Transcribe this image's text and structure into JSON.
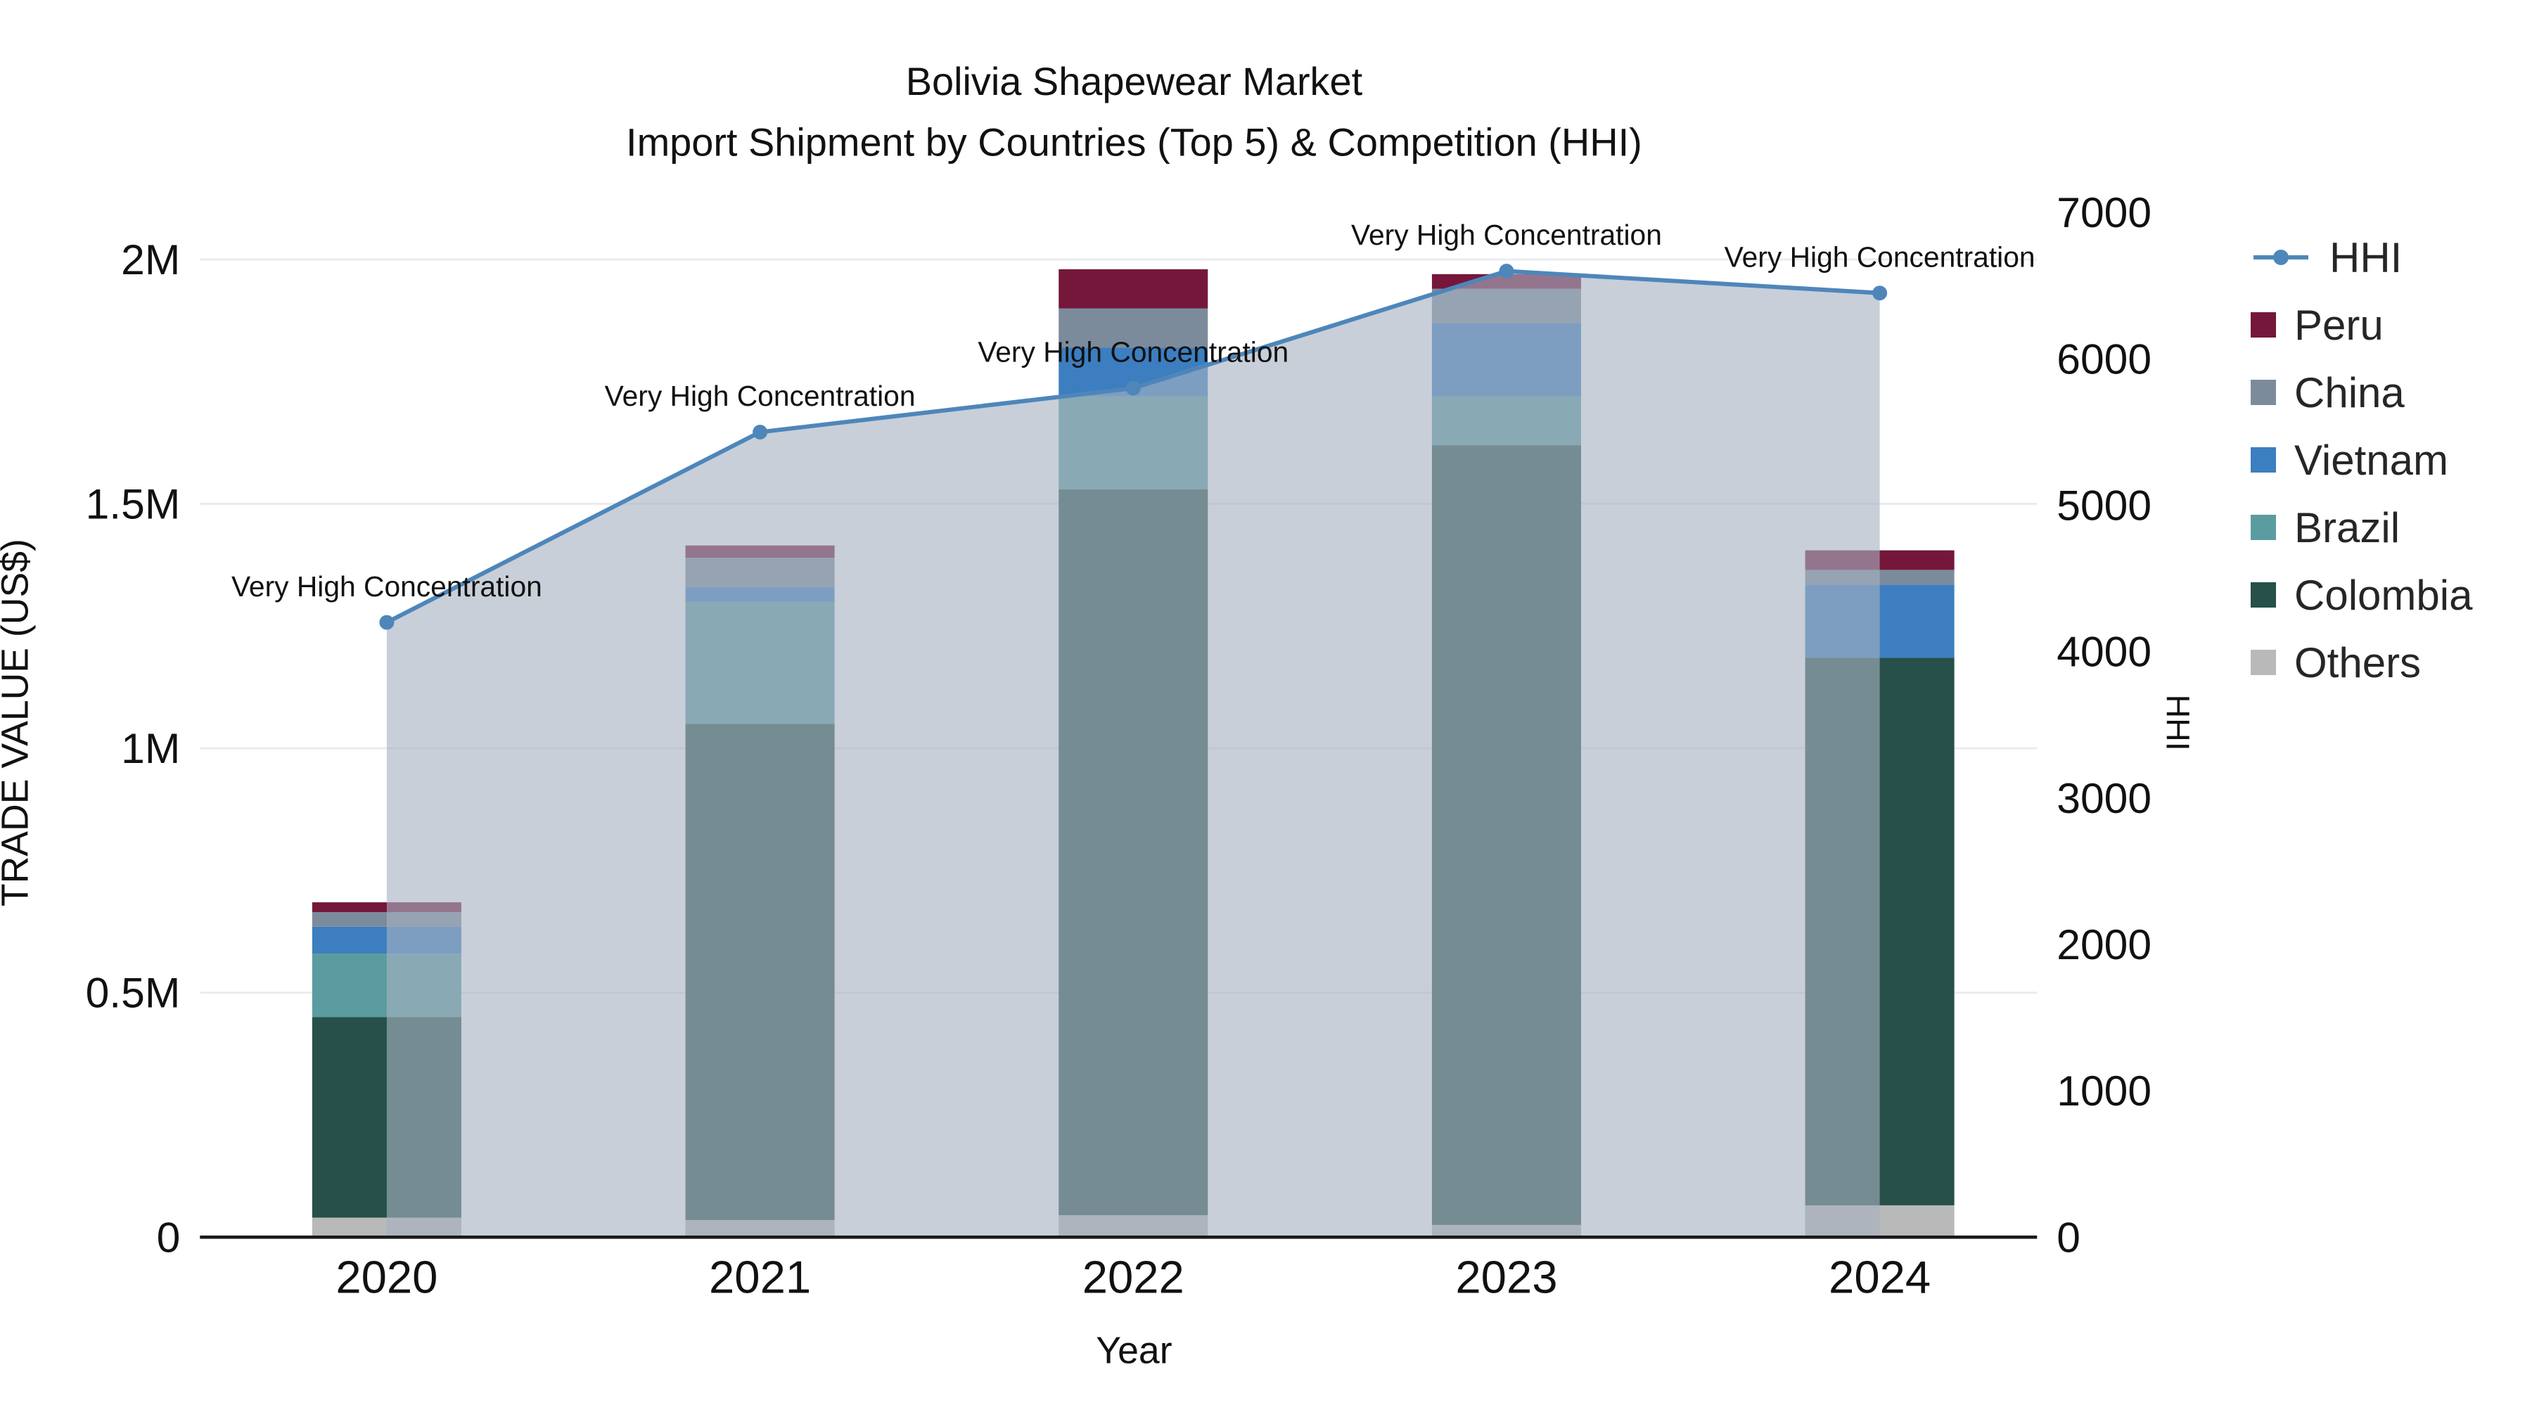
{
  "title": {
    "line1": "Bolivia Shapewear Market",
    "line2": "Import Shipment by Countries (Top 5) & Competition (HHI)"
  },
  "axes": {
    "x_title": "Year",
    "y_left_title": "TRADE VALUE (US$)",
    "y_right_title": "HHI",
    "y_left_ticks": [
      {
        "value": 0,
        "label": "0"
      },
      {
        "value": 500000,
        "label": "0.5M"
      },
      {
        "value": 1000000,
        "label": "1M"
      },
      {
        "value": 1500000,
        "label": "1.5M"
      },
      {
        "value": 2000000,
        "label": "2M"
      }
    ],
    "y_right_ticks": [
      {
        "value": 0,
        "label": "0"
      },
      {
        "value": 1000,
        "label": "1000"
      },
      {
        "value": 2000,
        "label": "2000"
      },
      {
        "value": 3000,
        "label": "3000"
      },
      {
        "value": 4000,
        "label": "4000"
      },
      {
        "value": 5000,
        "label": "5000"
      },
      {
        "value": 6000,
        "label": "6000"
      },
      {
        "value": 7000,
        "label": "7000"
      }
    ],
    "y_left_max": 2105000,
    "y_right_max": 7030
  },
  "legend": [
    {
      "label": "HHI",
      "type": "line",
      "color": "#4e86ba"
    },
    {
      "label": "Peru",
      "type": "square",
      "color": "#75173a"
    },
    {
      "label": "China",
      "type": "square",
      "color": "#7c8b9c"
    },
    {
      "label": "Vietnam",
      "type": "square",
      "color": "#3c7ec0"
    },
    {
      "label": "Brazil",
      "type": "square",
      "color": "#5b9ca0"
    },
    {
      "label": "Colombia",
      "type": "square",
      "color": "#265049"
    },
    {
      "label": "Others",
      "type": "square",
      "color": "#b9b9b9"
    }
  ],
  "chart_data": {
    "type": "bar",
    "subtype": "stacked-bars-with-line-area-overlay",
    "categories": [
      "2020",
      "2021",
      "2022",
      "2023",
      "2024"
    ],
    "bar_value_unit": "US$ trade value",
    "series": [
      {
        "name": "Others",
        "color": "#b9b9b9",
        "values": [
          40000,
          35000,
          45000,
          25000,
          65000
        ]
      },
      {
        "name": "Colombia",
        "color": "#265049",
        "values": [
          410000,
          1015000,
          1485000,
          1595000,
          1120000
        ]
      },
      {
        "name": "Brazil",
        "color": "#5b9ca0",
        "values": [
          130000,
          250000,
          190000,
          100000,
          0
        ]
      },
      {
        "name": "Vietnam",
        "color": "#3c7ec0",
        "values": [
          55000,
          30000,
          100000,
          150000,
          150000
        ]
      },
      {
        "name": "China",
        "color": "#7c8b9c",
        "values": [
          30000,
          60000,
          80000,
          70000,
          30000
        ]
      },
      {
        "name": "Peru",
        "color": "#75173a",
        "values": [
          20000,
          25000,
          80000,
          30000,
          40000
        ]
      }
    ],
    "line": {
      "name": "HHI",
      "axis": "right",
      "color": "#4e86ba",
      "area_fill": "rgba(167,177,194,0.62)",
      "values": [
        4200,
        5500,
        5800,
        6600,
        6450
      ]
    },
    "annotations": [
      "Very High Concentration",
      "Very High Concentration",
      "Very High Concentration",
      "Very High Concentration",
      "Very High Concentration"
    ],
    "y_left_range": [
      0,
      2105000
    ],
    "y_right_range": [
      0,
      7030
    ],
    "grid": "horizontal-light",
    "legend_position": "right"
  }
}
